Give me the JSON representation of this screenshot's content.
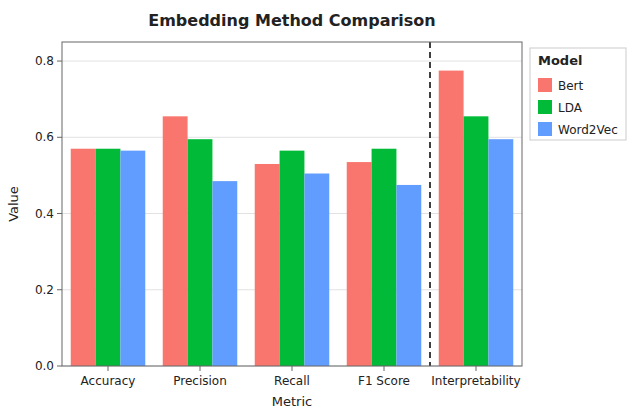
{
  "chart_data": {
    "type": "bar",
    "title": "Embedding Method Comparison",
    "xlabel": "Metric",
    "ylabel": "Value",
    "categories": [
      "Accuracy",
      "Precision",
      "Recall",
      "F1 Score",
      "Interpretability"
    ],
    "series": [
      {
        "name": "Bert",
        "color": "#F8766D",
        "values": [
          0.57,
          0.655,
          0.53,
          0.535,
          0.775
        ]
      },
      {
        "name": "LDA",
        "color": "#00BA38",
        "values": [
          0.57,
          0.595,
          0.565,
          0.57,
          0.655
        ]
      },
      {
        "name": "Word2Vec",
        "color": "#619CFF",
        "values": [
          0.565,
          0.485,
          0.505,
          0.475,
          0.595
        ]
      }
    ],
    "ylim": [
      0.0,
      0.85
    ],
    "yticks": [
      {
        "value": 0.0,
        "label": "0.0"
      },
      0.2,
      0.4,
      0.6,
      0.8
    ],
    "grid": true,
    "legend": "right",
    "legend_title": "Model"
  }
}
